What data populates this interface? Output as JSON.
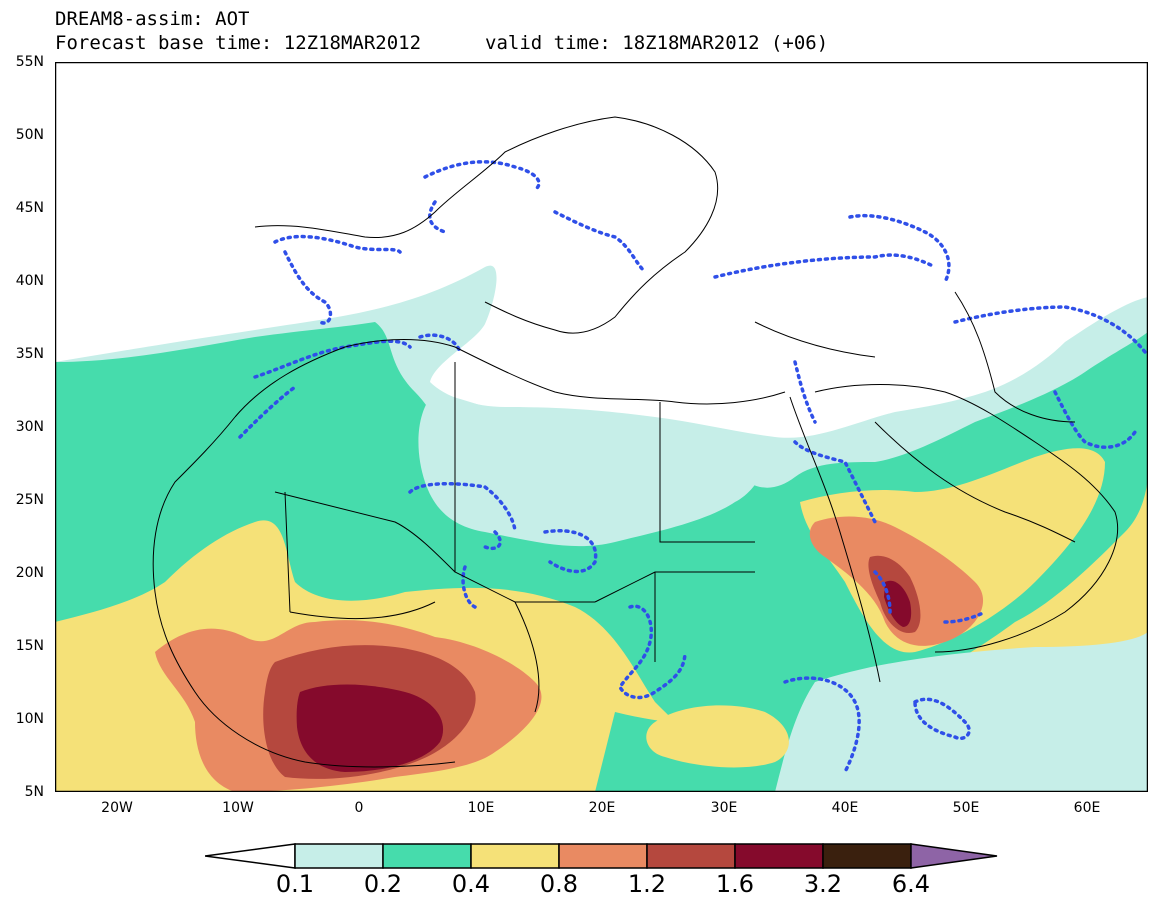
{
  "title": {
    "line1": "DREAM8-assim: AOT",
    "line2": "Forecast base time: 12Z18MAR2012",
    "valid": "valid time: 18Z18MAR2012 (+06)"
  },
  "lat_labels": [
    "55N",
    "50N",
    "45N",
    "40N",
    "35N",
    "30N",
    "25N",
    "20N",
    "15N",
    "10N",
    "5N"
  ],
  "lon_labels": [
    "20W",
    "10W",
    "0",
    "10E",
    "20E",
    "30E",
    "40E",
    "50E",
    "60E"
  ],
  "colorbar": {
    "labels": [
      "0.1",
      "0.2",
      "0.4",
      "0.8",
      "1.2",
      "1.6",
      "3.2",
      "6.4"
    ],
    "colors": [
      "#ffffff",
      "#c6eee8",
      "#46dcac",
      "#f5e178",
      "#e98a62",
      "#b5483e",
      "#850a2c",
      "#3a200e",
      "#8e64a6"
    ]
  }
}
